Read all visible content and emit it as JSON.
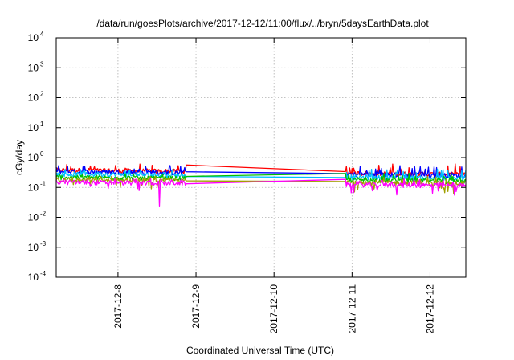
{
  "chart_data": {
    "type": "line",
    "title": "/data/run/goesPlots/archive/2017-12-12/11:00/flux/../bryn/5daysEarthData.plot",
    "xlabel": "Coordinated Universal Time (UTC)",
    "ylabel": "cGy/day",
    "yscale": "log",
    "ylim": [
      0.0001,
      10000
    ],
    "xlim": [
      "2017-12-07 05:00",
      "2017-12-12 11:00"
    ],
    "grid": true,
    "legend": "none",
    "y_ticks": [
      {
        "value": 0.0001,
        "base": "10",
        "exp": "-4"
      },
      {
        "value": 0.001,
        "base": "10",
        "exp": "-3"
      },
      {
        "value": 0.01,
        "base": "10",
        "exp": "-2"
      },
      {
        "value": 0.1,
        "base": "10",
        "exp": "-1"
      },
      {
        "value": 1,
        "base": "10",
        "exp": "0"
      },
      {
        "value": 10,
        "base": "10",
        "exp": "1"
      },
      {
        "value": 100,
        "base": "10",
        "exp": "2"
      },
      {
        "value": 1000,
        "base": "10",
        "exp": "3"
      },
      {
        "value": 10000,
        "base": "10",
        "exp": "4"
      }
    ],
    "x_ticks": [
      {
        "value": "2017-12-08",
        "label": "2017-12-8"
      },
      {
        "value": "2017-12-09",
        "label": "2017-12-9"
      },
      {
        "value": "2017-12-10",
        "label": "2017-12-10"
      },
      {
        "value": "2017-12-11",
        "label": "2017-12-11"
      },
      {
        "value": "2017-12-12",
        "label": "2017-12-12"
      }
    ],
    "data_segments": [
      {
        "start": "2017-12-07 05:00",
        "end": "2017-12-08 21:00"
      },
      {
        "start": "2017-12-10 22:00",
        "end": "2017-12-12 11:00"
      }
    ],
    "dropouts": [
      {
        "x": "2017-12-08 12:45",
        "y": 0.024
      }
    ],
    "series": [
      {
        "color": "#ff0000",
        "level_start": 0.38,
        "level_end": 0.27,
        "spike_max": 0.62
      },
      {
        "color": "#0000ff",
        "level_start": 0.34,
        "level_end": 0.25,
        "spike_max": 0.55
      },
      {
        "color": "#00bfff",
        "level_start": 0.28,
        "level_end": 0.2,
        "spike_max": 0.42
      },
      {
        "color": "#00c000",
        "level_start": 0.22,
        "level_end": 0.16,
        "spike_max": 0.3
      },
      {
        "color": "#a0a000",
        "level_start": 0.18,
        "level_end": 0.135,
        "spike_max": 0.24
      },
      {
        "color": "#ff00ff",
        "level_start": 0.15,
        "level_end": 0.115,
        "spike_max": 0.2
      }
    ]
  }
}
